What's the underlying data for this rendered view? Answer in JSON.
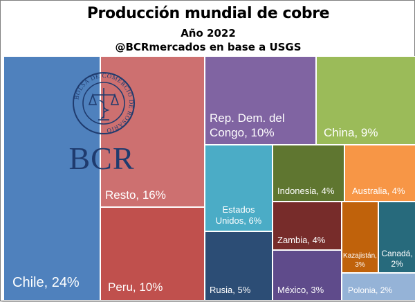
{
  "chart_data": {
    "type": "treemap",
    "title": "Producción mundial de cobre",
    "subtitle": "Año 2022",
    "source": "@BCRmercados en base a USGS",
    "unit": "%",
    "items": [
      {
        "label": "Chile, 24%",
        "name": "Chile",
        "value": 24,
        "color": "#4f81bd"
      },
      {
        "label": "Resto, 16%",
        "name": "Resto",
        "value": 16,
        "color": "#cd7070"
      },
      {
        "label": "Peru, 10%",
        "name": "Peru",
        "value": 10,
        "color": "#c0504d"
      },
      {
        "label": "Rep. Dem. del\nCongo, 10%",
        "name": "Rep. Dem. del Congo",
        "value": 10,
        "color": "#8064a2"
      },
      {
        "label": "China, 9%",
        "name": "China",
        "value": 9,
        "color": "#9bbb59"
      },
      {
        "label": "Estados\nUnidos, 6%",
        "name": "Estados Unidos",
        "value": 6,
        "color": "#4bacc6"
      },
      {
        "label": "Indonesia, 4%",
        "name": "Indonesia",
        "value": 4,
        "color": "#5f7630"
      },
      {
        "label": "Australia, 4%",
        "name": "Australia",
        "value": 4,
        "color": "#f79646"
      },
      {
        "label": "Zambia, 4%",
        "name": "Zambia",
        "value": 4,
        "color": "#772c2a"
      },
      {
        "label": "Rusia, 5%",
        "name": "Rusia",
        "value": 5,
        "color": "#2c4d75"
      },
      {
        "label": "México, 3%",
        "name": "México",
        "value": 3,
        "color": "#5f4b8b"
      },
      {
        "label": "Kazajistán,\n3%",
        "name": "Kazajistán",
        "value": 3,
        "color": "#c0620b"
      },
      {
        "label": "Canadá,\n2%",
        "name": "Canadá",
        "value": 2,
        "color": "#276a7c"
      },
      {
        "label": "Polonia, 2%",
        "name": "Polonia",
        "value": 2,
        "color": "#95b3d7"
      }
    ]
  },
  "watermark": {
    "text": "BCR",
    "ring_text": "BOLSA DE COMERCIO DE ROSARIO",
    "color": "#1f3b6e"
  }
}
